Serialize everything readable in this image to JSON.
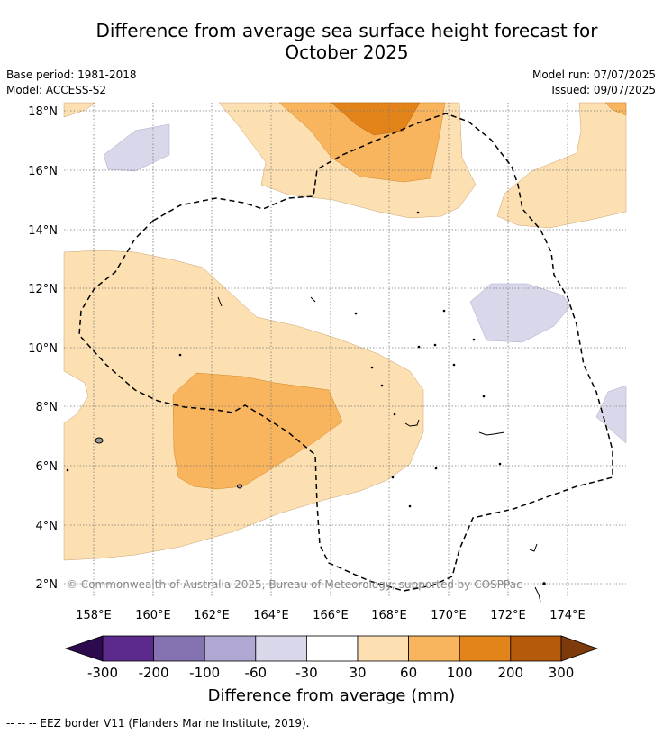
{
  "title_line1": "Difference from average sea surface height forecast for",
  "title_line2": "October 2025",
  "base_period": "Base period: 1981-2018",
  "model": "Model: ACCESS-S2",
  "model_run": "Model run: 07/07/2025",
  "issued": "Issued: 09/07/2025",
  "copyright": "© Commonwealth of Australia 2025, Bureau of Meteorology; supported by COSPPac",
  "eez_note": "--  --  -- EEZ border V11 (Flanders Marine Institute, 2019).",
  "map": {
    "lat_labels": [
      "18°N",
      "16°N",
      "14°N",
      "12°N",
      "10°N",
      "8°N",
      "6°N",
      "4°N",
      "2°N"
    ],
    "lon_labels": [
      "158°E",
      "160°E",
      "162°E",
      "164°E",
      "166°E",
      "168°E",
      "170°E",
      "172°E",
      "174°E"
    ]
  },
  "colorbar": {
    "title": "Difference from average (mm)",
    "tick_labels": [
      "-300",
      "-200",
      "-100",
      "-60",
      "-30",
      "30",
      "60",
      "100",
      "200",
      "300"
    ],
    "colors": {
      "below_-300": "#2d0a4e",
      "-300_-200": "#5b2a8c",
      "-200_-100": "#8473b0",
      "-100_-60": "#b0a8d2",
      "-60_-30": "#d8d8ea",
      "-30_30": "#ffffff",
      "30_60": "#fde0b2",
      "60_100": "#f9b55e",
      "100_200": "#e3841a",
      "200_300": "#b55a0b",
      "above_300": "#7e3a0b"
    }
  }
}
